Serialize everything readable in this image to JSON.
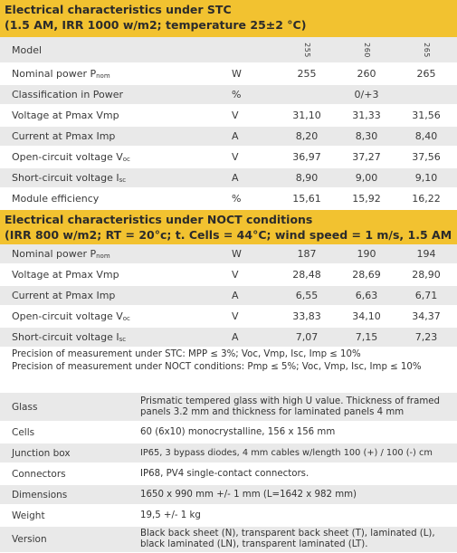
{
  "stc": {
    "title_line1": "Electrical characteristics under STC",
    "title_line2": "(1.5 AM, IRR 1000 w/m2; temperature 25±2 °C)",
    "model_label": "Model",
    "models": [
      "255",
      "260",
      "265"
    ],
    "rows": [
      {
        "label": "Nominal power P",
        "sub": "nom",
        "unit": "W",
        "values": [
          "255",
          "260",
          "265"
        ]
      },
      {
        "label": "Classification in Power",
        "sub": "",
        "unit": "%",
        "span": "0/+3"
      },
      {
        "label": "Voltage at Pmax Vmp",
        "sub": "",
        "unit": "V",
        "values": [
          "31,10",
          "31,33",
          "31,56"
        ]
      },
      {
        "label": "Current at Pmax Imp",
        "sub": "",
        "unit": "A",
        "values": [
          "8,20",
          "8,30",
          "8,40"
        ]
      },
      {
        "label": "Open-circuit voltage V",
        "sub": "oc",
        "unit": "V",
        "values": [
          "36,97",
          "37,27",
          "37,56"
        ]
      },
      {
        "label": "Short-circuit voltage I",
        "sub": "sc",
        "unit": "A",
        "values": [
          "8,90",
          "9,00",
          "9,10"
        ]
      },
      {
        "label": "Module efficiency",
        "sub": "",
        "unit": "%",
        "values": [
          "15,61",
          "15,92",
          "16,22"
        ]
      }
    ]
  },
  "noct": {
    "title_line1": "Electrical characteristics under NOCT conditions",
    "title_line2": "(IRR 800 w/m2; RT = 20°c; t. Cells = 44°C; wind speed = 1 m/s, 1.5 AM)",
    "rows": [
      {
        "label": "Nominal power P",
        "sub": "nom",
        "unit": "W",
        "values": [
          "187",
          "190",
          "194"
        ]
      },
      {
        "label": "Voltage at Pmax Vmp",
        "sub": "",
        "unit": "V",
        "values": [
          "28,48",
          "28,69",
          "28,90"
        ]
      },
      {
        "label": "Current at Pmax Imp",
        "sub": "",
        "unit": "A",
        "values": [
          "6,55",
          "6,63",
          "6,71"
        ]
      },
      {
        "label": "Open-circuit voltage V",
        "sub": "oc",
        "unit": "V",
        "values": [
          "33,83",
          "34,10",
          "34,37"
        ]
      },
      {
        "label": "Short-circuit voltage I",
        "sub": "sc",
        "unit": "A",
        "values": [
          "7,07",
          "7,15",
          "7,23"
        ]
      }
    ]
  },
  "precision": {
    "stc": "Precision of measurement under STC: MPP ≤ 3%; Voc, Vmp, Isc, Imp ≤ 10%",
    "noct": "Precision of measurement under NOCT conditions: Pmp ≤ 5%; Voc, Vmp, Isc, Imp ≤ 10%"
  },
  "specs": [
    {
      "label": "Glass",
      "lines": [
        "Prismatic tempered glass with high U value. Thickness of framed",
        "panels 3.2 mm and thickness for laminated panels 4 mm"
      ]
    },
    {
      "label": "Cells",
      "lines": [
        "60 (6x10) monocrystalline, 156 x 156 mm"
      ]
    },
    {
      "label": "Junction box",
      "lines": [
        "IP65, 3 bypass diodes, 4 mm cables w/length 100 (+) / 100 (-) cm"
      ]
    },
    {
      "label": "Connectors",
      "lines": [
        "IP68, PV4 single-contact connectors."
      ]
    },
    {
      "label": "Dimensions",
      "lines": [
        "1650 x 990 mm +/- 1 mm (L=1642 x 982 mm)"
      ]
    },
    {
      "label": "Weight",
      "lines": [
        "19,5 +/- 1 kg"
      ]
    },
    {
      "label": "Version",
      "lines": [
        "Black back sheet (N), transparent back sheet (T), laminated (L),",
        "black laminated (LN), transparent laminated (LT)."
      ]
    }
  ]
}
